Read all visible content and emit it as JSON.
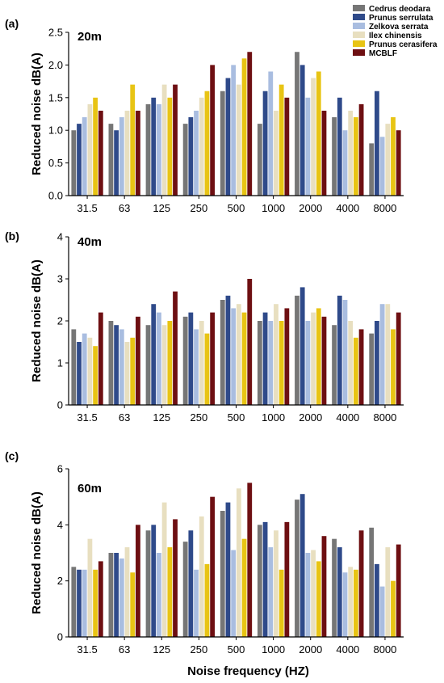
{
  "legend_position": "top-right",
  "chart_data": [
    {
      "type": "bar",
      "panel_label": "(a)",
      "title": "20m",
      "xlabel": "",
      "ylabel": "Reduced noise dB(A)",
      "ylim": [
        0,
        2.5
      ],
      "yticks": [
        "0.0",
        "0.5",
        "1.0",
        "1.5",
        "2.0",
        "2.5"
      ],
      "categories": [
        "31.5",
        "63",
        "125",
        "250",
        "500",
        "1000",
        "2000",
        "4000",
        "8000"
      ],
      "series": [
        {
          "name": "Cedrus deodara",
          "color": "#767676",
          "values": [
            1.0,
            1.1,
            1.4,
            1.1,
            1.6,
            1.1,
            2.2,
            1.2,
            0.8
          ]
        },
        {
          "name": "Prunus serrulata",
          "color": "#2f4a8a",
          "values": [
            1.1,
            1.0,
            1.5,
            1.2,
            1.8,
            1.6,
            2.0,
            1.5,
            1.6
          ]
        },
        {
          "name": "Zelkova serrata",
          "color": "#a9bde0",
          "values": [
            1.2,
            1.2,
            1.4,
            1.3,
            2.0,
            1.9,
            1.5,
            1.0,
            0.9
          ]
        },
        {
          "name": "Ilex chinensis",
          "color": "#e8dfc0",
          "values": [
            1.4,
            1.3,
            1.7,
            1.5,
            1.7,
            1.3,
            1.8,
            1.3,
            1.1
          ]
        },
        {
          "name": "Prunus cerasifera",
          "color": "#e8c414",
          "values": [
            1.5,
            1.7,
            1.5,
            1.6,
            2.1,
            1.7,
            1.9,
            1.2,
            1.2
          ]
        },
        {
          "name": "MCBLF",
          "color": "#6e0f12",
          "values": [
            1.3,
            1.3,
            1.7,
            2.0,
            2.2,
            1.5,
            1.3,
            1.4,
            1.0
          ]
        }
      ]
    },
    {
      "type": "bar",
      "panel_label": "(b)",
      "title": "40m",
      "xlabel": "",
      "ylabel": "Reduced noise dB(A)",
      "ylim": [
        0,
        4
      ],
      "yticks": [
        "0",
        "1",
        "2",
        "3",
        "4"
      ],
      "categories": [
        "31.5",
        "63",
        "125",
        "250",
        "500",
        "1000",
        "2000",
        "4000",
        "8000"
      ],
      "series": [
        {
          "name": "Cedrus deodara",
          "color": "#767676",
          "values": [
            1.8,
            2.0,
            1.9,
            2.1,
            2.5,
            2.0,
            2.6,
            1.9,
            1.7
          ]
        },
        {
          "name": "Prunus serrulata",
          "color": "#2f4a8a",
          "values": [
            1.5,
            1.9,
            2.4,
            2.2,
            2.6,
            2.2,
            2.8,
            2.6,
            2.0
          ]
        },
        {
          "name": "Zelkova serrata",
          "color": "#a9bde0",
          "values": [
            1.7,
            1.8,
            2.2,
            1.8,
            2.3,
            2.0,
            2.0,
            2.5,
            2.4
          ]
        },
        {
          "name": "Ilex chinensis",
          "color": "#e8dfc0",
          "values": [
            1.6,
            1.5,
            1.9,
            2.0,
            2.4,
            2.4,
            2.2,
            2.0,
            2.4
          ]
        },
        {
          "name": "Prunus cerasifera",
          "color": "#e8c414",
          "values": [
            1.4,
            1.6,
            2.0,
            1.7,
            2.2,
            2.0,
            2.3,
            1.6,
            1.8
          ]
        },
        {
          "name": "MCBLF",
          "color": "#6e0f12",
          "values": [
            2.2,
            2.1,
            2.7,
            2.2,
            3.0,
            2.3,
            2.1,
            1.8,
            2.2
          ]
        }
      ]
    },
    {
      "type": "bar",
      "panel_label": "(c)",
      "title": "60m",
      "xlabel": "Noise frequency (HZ)",
      "ylabel": "Reduced noise dB(A)",
      "ylim": [
        0,
        6
      ],
      "yticks": [
        "0",
        "2",
        "4",
        "6"
      ],
      "categories": [
        "31.5",
        "63",
        "125",
        "250",
        "500",
        "1000",
        "2000",
        "4000",
        "8000"
      ],
      "series": [
        {
          "name": "Cedrus deodara",
          "color": "#767676",
          "values": [
            2.5,
            3.0,
            3.8,
            3.4,
            4.5,
            4.0,
            4.9,
            3.5,
            3.9
          ]
        },
        {
          "name": "Prunus serrulata",
          "color": "#2f4a8a",
          "values": [
            2.4,
            3.0,
            4.0,
            3.8,
            4.8,
            4.1,
            5.1,
            3.2,
            2.6
          ]
        },
        {
          "name": "Zelkova serrata",
          "color": "#a9bde0",
          "values": [
            2.4,
            2.8,
            3.0,
            2.4,
            3.1,
            3.2,
            3.0,
            2.3,
            1.8
          ]
        },
        {
          "name": "Ilex chinensis",
          "color": "#e8dfc0",
          "values": [
            3.5,
            3.2,
            4.8,
            4.3,
            5.3,
            3.8,
            3.1,
            2.5,
            3.2
          ]
        },
        {
          "name": "Prunus cerasifera",
          "color": "#e8c414",
          "values": [
            2.4,
            2.3,
            3.2,
            2.6,
            3.5,
            2.4,
            2.7,
            2.4,
            2.0
          ]
        },
        {
          "name": "MCBLF",
          "color": "#6e0f12",
          "values": [
            2.7,
            4.0,
            4.2,
            5.0,
            5.5,
            4.1,
            3.6,
            3.8,
            3.3
          ]
        }
      ]
    }
  ]
}
